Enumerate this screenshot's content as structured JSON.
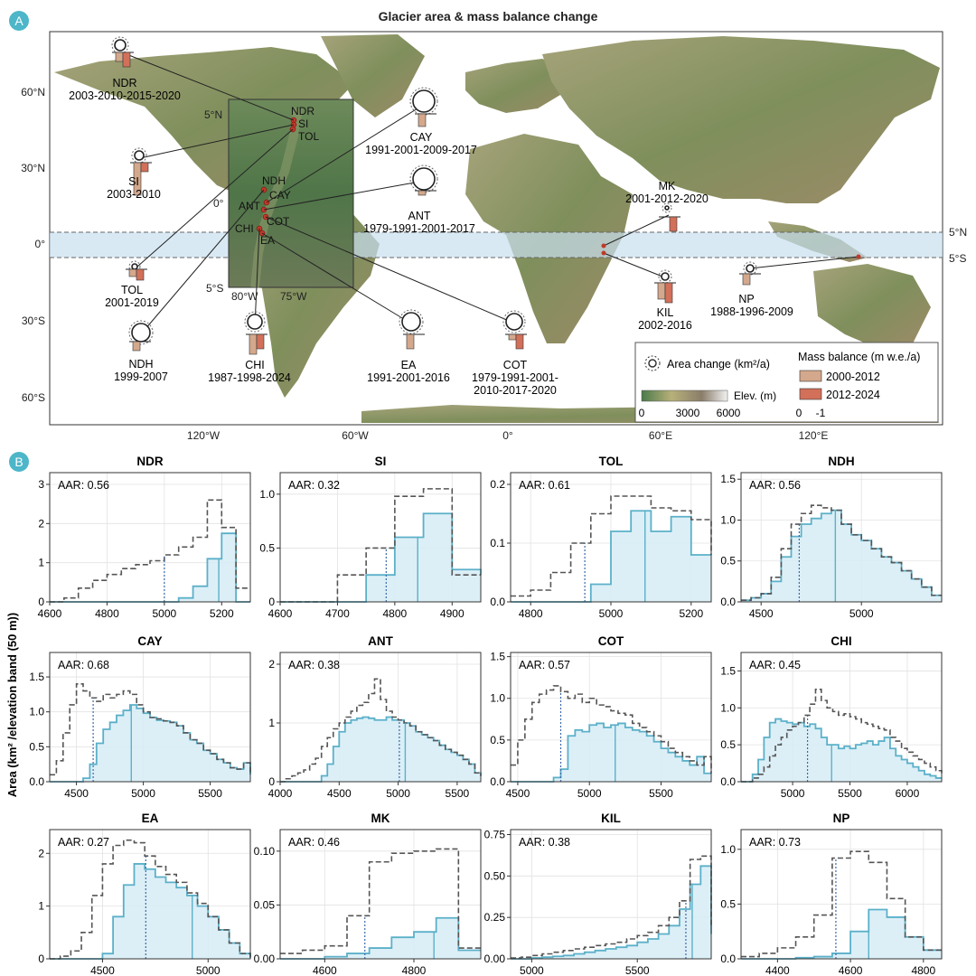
{
  "panel_a": {
    "label": "A",
    "title": "Glacier area & mass balance change",
    "lat_ticks": [
      "60°N",
      "30°N",
      "0°",
      "30°S",
      "60°S"
    ],
    "lon_ticks": [
      "120°W",
      "60°W",
      "0°",
      "60°E",
      "120°E"
    ],
    "band_labels": [
      "5°N",
      "5°S"
    ],
    "inset": {
      "lat_ticks": [
        "5°N",
        "0°",
        "5°S"
      ],
      "lon_ticks": [
        "80°W",
        "75°W"
      ],
      "site_labels": [
        "NDR",
        "SI",
        "TOL",
        "NDH",
        "CAY",
        "ANT",
        "COT",
        "CHI",
        "EA"
      ]
    },
    "sites": [
      {
        "code": "NDR",
        "years": "2003-2010-2015-2020"
      },
      {
        "code": "SI",
        "years": "2003-2010"
      },
      {
        "code": "TOL",
        "years": "2001-2019"
      },
      {
        "code": "NDH",
        "years": "1999-2007"
      },
      {
        "code": "CHI",
        "years": "1987-1998-2024"
      },
      {
        "code": "CAY",
        "years": "1991-2001-2009-2017"
      },
      {
        "code": "ANT",
        "years": "1979-1991-2001-2017"
      },
      {
        "code": "EA",
        "years": "1991-2001-2016"
      },
      {
        "code": "COT",
        "years": "1979-1991-2001-2010-2017-2020"
      },
      {
        "code": "MK",
        "years": "2001-2012-2020"
      },
      {
        "code": "KIL",
        "years": "2002-2016"
      },
      {
        "code": "NP",
        "years": "1988-1996-2009"
      }
    ],
    "legend": {
      "area_change": "Area change (km²/a)",
      "mass_balance": "Mass balance (m w.e./a)",
      "period1": "2000-2012",
      "period2": "2012-2024",
      "elev_label": "Elev. (m)",
      "elev_ticks": [
        "0",
        "3000",
        "6000"
      ],
      "mb_ticks": [
        "0",
        "-1"
      ]
    },
    "colors": {
      "period1": "#d4a88c",
      "period2": "#d2705a",
      "ocean": "#ffffff",
      "band": "#c9dff0"
    }
  },
  "panel_b": {
    "label": "B",
    "ylabel": "Area (km² /elevation band (50 m))",
    "colors": {
      "past": "#555555",
      "current": "#5bb0c9",
      "fill": "#d6ecf6"
    }
  },
  "chart_data": [
    {
      "type": "line",
      "title": "NDR",
      "aar": "AAR: 0.56",
      "xlim": [
        4600,
        5300
      ],
      "ylim": [
        0,
        3.3
      ],
      "xticks": [
        4600,
        4800,
        5000,
        5200
      ],
      "yticks": [
        0,
        1,
        2,
        3
      ],
      "ytick_labels": [
        "0",
        "1",
        "2",
        "3"
      ],
      "x": [
        4600,
        4650,
        4700,
        4750,
        4800,
        4850,
        4900,
        4950,
        5000,
        5050,
        5100,
        5150,
        5200,
        5250,
        5300
      ],
      "past": [
        0,
        0.1,
        0.35,
        0.55,
        0.7,
        0.85,
        0.95,
        1.05,
        1.2,
        1.4,
        1.65,
        2.6,
        1.9,
        0.35,
        0.35
      ],
      "current": [
        0,
        0,
        0,
        0,
        0,
        0,
        0,
        0,
        0,
        0.1,
        0.4,
        1.1,
        1.75,
        0,
        0
      ],
      "ela_past": 5000,
      "ela_current": 5190
    },
    {
      "type": "line",
      "title": "SI",
      "aar": "AAR: 0.32",
      "xlim": [
        4600,
        4950
      ],
      "ylim": [
        0,
        1.2
      ],
      "xticks": [
        4600,
        4700,
        4800,
        4900
      ],
      "yticks": [
        0,
        0.5,
        1.0
      ],
      "ytick_labels": [
        "0",
        "0.5",
        "1.0"
      ],
      "x": [
        4600,
        4650,
        4700,
        4750,
        4800,
        4850,
        4900,
        4950
      ],
      "past": [
        0,
        0,
        0.25,
        0.5,
        0.98,
        1.05,
        0.25,
        0.25
      ],
      "current": [
        0,
        0,
        0,
        0.25,
        0.6,
        0.82,
        0.3,
        0.25
      ],
      "ela_past": 4785,
      "ela_current": 4840
    },
    {
      "type": "line",
      "title": "TOL",
      "aar": "AAR: 0.61",
      "xlim": [
        4750,
        5250
      ],
      "ylim": [
        0,
        0.22
      ],
      "xticks": [
        4800,
        5000,
        5200
      ],
      "yticks": [
        0,
        0.1,
        0.2
      ],
      "ytick_labels": [
        "0.0",
        "0.1",
        "0.2"
      ],
      "x": [
        4750,
        4800,
        4850,
        4900,
        4950,
        5000,
        5050,
        5100,
        5150,
        5200,
        5250
      ],
      "past": [
        0.01,
        0.02,
        0.05,
        0.1,
        0.15,
        0.18,
        0.18,
        0.16,
        0.155,
        0.14,
        0.08
      ],
      "current": [
        0,
        0,
        0,
        0,
        0.03,
        0.12,
        0.155,
        0.12,
        0.145,
        0.08,
        0.08
      ],
      "ela_past": 4935,
      "ela_current": 5085
    },
    {
      "type": "line",
      "title": "NDH",
      "aar": "AAR: 0.56",
      "xlim": [
        4400,
        5400
      ],
      "ylim": [
        0,
        1.58
      ],
      "xticks": [
        4500,
        5000
      ],
      "yticks": [
        0,
        0.5,
        1.0,
        1.5
      ],
      "ytick_labels": [
        "0.0",
        "0.5",
        "1.0",
        "1.5"
      ],
      "x": [
        4400,
        4450,
        4500,
        4550,
        4600,
        4650,
        4700,
        4750,
        4800,
        4850,
        4900,
        4950,
        5000,
        5050,
        5100,
        5150,
        5200,
        5250,
        5300,
        5350,
        5400
      ],
      "past": [
        0.02,
        0.05,
        0.1,
        0.3,
        0.65,
        0.95,
        1.08,
        1.18,
        1.15,
        1.12,
        0.95,
        0.82,
        0.75,
        0.65,
        0.55,
        0.48,
        0.38,
        0.28,
        0.18,
        0.08,
        0.08
      ],
      "current": [
        0.02,
        0.05,
        0.1,
        0.25,
        0.55,
        0.8,
        0.95,
        1.02,
        1.08,
        1.12,
        0.95,
        0.82,
        0.75,
        0.65,
        0.55,
        0.48,
        0.38,
        0.28,
        0.18,
        0.08,
        0.08
      ],
      "ela_past": 4690,
      "ela_current": 4870
    },
    {
      "type": "line",
      "title": "CAY",
      "aar": "AAR: 0.68",
      "xlim": [
        4300,
        5800
      ],
      "ylim": [
        0,
        1.85
      ],
      "xticks": [
        4500,
        5000,
        5500
      ],
      "yticks": [
        0,
        0.5,
        1.0,
        1.5
      ],
      "ytick_labels": [
        "0.0",
        "0.5",
        "1.0",
        "1.5"
      ],
      "x": [
        4300,
        4350,
        4400,
        4450,
        4500,
        4550,
        4600,
        4650,
        4700,
        4750,
        4800,
        4850,
        4900,
        4950,
        5000,
        5050,
        5100,
        5150,
        5200,
        5250,
        5300,
        5350,
        5400,
        5450,
        5500,
        5550,
        5600,
        5650,
        5700,
        5750,
        5800
      ],
      "past": [
        0.1,
        0.3,
        0.7,
        1.1,
        1.4,
        1.3,
        1.2,
        1.15,
        1.25,
        1.2,
        1.25,
        1.3,
        1.25,
        1.1,
        1.0,
        0.92,
        0.9,
        0.87,
        0.85,
        0.8,
        0.7,
        0.6,
        0.55,
        0.45,
        0.4,
        0.32,
        0.27,
        0.2,
        0.18,
        0.27,
        0.1
      ],
      "current": [
        0,
        0,
        0,
        0,
        0,
        0.05,
        0.25,
        0.55,
        0.75,
        0.85,
        0.95,
        1.02,
        1.1,
        1.05,
        0.98,
        0.92,
        0.88,
        0.87,
        0.85,
        0.8,
        0.7,
        0.6,
        0.55,
        0.45,
        0.4,
        0.32,
        0.27,
        0.2,
        0.18,
        0.27,
        0.1
      ],
      "ela_past": 4625,
      "ela_current": 4910
    },
    {
      "type": "line",
      "title": "ANT",
      "aar": "AAR: 0.38",
      "xlim": [
        4000,
        5700
      ],
      "ylim": [
        0,
        2.2
      ],
      "xticks": [
        4000,
        4500,
        5000,
        5500
      ],
      "yticks": [
        0,
        1,
        2
      ],
      "ytick_labels": [
        "0",
        "1",
        "2"
      ],
      "x": [
        4000,
        4050,
        4100,
        4150,
        4200,
        4250,
        4300,
        4350,
        4400,
        4450,
        4500,
        4550,
        4600,
        4650,
        4700,
        4750,
        4800,
        4850,
        4900,
        4950,
        5000,
        5050,
        5100,
        5150,
        5200,
        5250,
        5300,
        5350,
        5400,
        5450,
        5500,
        5550,
        5600,
        5650,
        5700
      ],
      "past": [
        0,
        0.05,
        0.1,
        0.15,
        0.2,
        0.3,
        0.4,
        0.6,
        0.75,
        0.9,
        1.0,
        1.1,
        1.2,
        1.3,
        1.35,
        1.5,
        1.75,
        1.4,
        1.2,
        1.1,
        1.05,
        1.0,
        0.95,
        0.85,
        0.8,
        0.75,
        0.7,
        0.62,
        0.55,
        0.5,
        0.45,
        0.38,
        0.3,
        0.15,
        0.1
      ],
      "current": [
        0,
        0,
        0,
        0,
        0,
        0,
        0,
        0.1,
        0.3,
        0.6,
        0.85,
        1.0,
        1.05,
        1.08,
        1.1,
        1.08,
        1.05,
        1.05,
        1.1,
        1.05,
        1.05,
        1.0,
        0.95,
        0.85,
        0.8,
        0.75,
        0.7,
        0.62,
        0.55,
        0.5,
        0.45,
        0.38,
        0.3,
        0.15,
        0.1
      ],
      "ela_past": 5010,
      "ela_current": 5060
    },
    {
      "type": "line",
      "title": "COT",
      "aar": "AAR: 0.57",
      "xlim": [
        4450,
        5850
      ],
      "ylim": [
        0,
        1.55
      ],
      "xticks": [
        4500,
        5000,
        5500
      ],
      "yticks": [
        0,
        0.5,
        1.0,
        1.5
      ],
      "ytick_labels": [
        "0.0",
        "0.5",
        "1.0",
        "1.5"
      ],
      "x": [
        4450,
        4500,
        4550,
        4600,
        4650,
        4700,
        4750,
        4800,
        4850,
        4900,
        4950,
        5000,
        5050,
        5100,
        5150,
        5200,
        5250,
        5300,
        5350,
        5400,
        5450,
        5500,
        5550,
        5600,
        5650,
        5700,
        5750,
        5800,
        5850
      ],
      "past": [
        0.2,
        0.5,
        0.75,
        0.95,
        1.05,
        1.1,
        1.15,
        1.08,
        1.0,
        1.05,
        0.95,
        1.0,
        0.92,
        0.9,
        0.85,
        0.82,
        0.8,
        0.7,
        0.65,
        0.6,
        0.55,
        0.48,
        0.4,
        0.35,
        0.3,
        0.25,
        0.2,
        0.3,
        0.1
      ],
      "current": [
        0,
        0,
        0,
        0,
        0,
        0,
        0.05,
        0.15,
        0.55,
        0.62,
        0.6,
        0.68,
        0.7,
        0.65,
        0.68,
        0.7,
        0.65,
        0.62,
        0.6,
        0.55,
        0.48,
        0.4,
        0.35,
        0.3,
        0.25,
        0.2,
        0.3,
        0.1,
        0.1
      ],
      "ela_past": 4800,
      "ela_current": 5180
    },
    {
      "type": "line",
      "title": "CHI",
      "aar": "AAR: 0.45",
      "xlim": [
        4550,
        6300
      ],
      "ylim": [
        0,
        1.75
      ],
      "xticks": [
        5000,
        5500,
        6000
      ],
      "yticks": [
        0,
        0.5,
        1.0,
        1.5
      ],
      "ytick_labels": [
        "0.0",
        "0.5",
        "1.0",
        "1.5"
      ],
      "x": [
        4550,
        4600,
        4650,
        4700,
        4750,
        4800,
        4850,
        4900,
        4950,
        5000,
        5050,
        5100,
        5150,
        5200,
        5250,
        5300,
        5350,
        5400,
        5450,
        5500,
        5550,
        5600,
        5650,
        5700,
        5750,
        5800,
        5850,
        5900,
        5950,
        6000,
        6050,
        6100,
        6150,
        6200,
        6250,
        6300
      ],
      "past": [
        0,
        0,
        0.05,
        0.1,
        0.2,
        0.35,
        0.5,
        0.6,
        0.7,
        0.75,
        0.8,
        0.9,
        1.05,
        1.25,
        1.1,
        1.0,
        0.95,
        0.9,
        0.92,
        0.88,
        0.85,
        0.8,
        0.78,
        0.75,
        0.72,
        0.7,
        0.6,
        0.55,
        0.45,
        0.4,
        0.35,
        0.3,
        0.25,
        0.2,
        0.15,
        0.1
      ],
      "current": [
        0,
        0,
        0.1,
        0.3,
        0.6,
        0.8,
        0.85,
        0.82,
        0.8,
        0.78,
        0.8,
        0.75,
        0.78,
        0.72,
        0.6,
        0.5,
        0.5,
        0.45,
        0.48,
        0.45,
        0.5,
        0.52,
        0.55,
        0.5,
        0.55,
        0.6,
        0.45,
        0.35,
        0.3,
        0.25,
        0.2,
        0.15,
        0.1,
        0.08,
        0.05,
        0.05
      ],
      "ela_past": 5130,
      "ela_current": 5340
    },
    {
      "type": "line",
      "title": "EA",
      "aar": "AAR: 0.27",
      "xlim": [
        4250,
        5200
      ],
      "ylim": [
        0,
        2.45
      ],
      "xticks": [
        4500,
        5000
      ],
      "yticks": [
        0,
        1,
        2
      ],
      "ytick_labels": [
        "0",
        "1",
        "2"
      ],
      "x": [
        4250,
        4300,
        4350,
        4400,
        4450,
        4500,
        4550,
        4600,
        4650,
        4700,
        4750,
        4800,
        4850,
        4900,
        4950,
        5000,
        5050,
        5100,
        5150,
        5200
      ],
      "past": [
        0,
        0.05,
        0.15,
        0.5,
        1.2,
        1.8,
        2.15,
        2.25,
        2.2,
        1.95,
        1.75,
        1.6,
        1.45,
        1.25,
        1.05,
        0.8,
        0.55,
        0.3,
        0.1,
        0.02
      ],
      "current": [
        0,
        0,
        0,
        0,
        0,
        0.1,
        0.8,
        1.4,
        1.8,
        1.7,
        1.55,
        1.45,
        1.35,
        1.2,
        1.0,
        0.8,
        0.55,
        0.3,
        0.1,
        0.02
      ],
      "ela_past": 4705,
      "ela_current": 4925
    },
    {
      "type": "line",
      "title": "MK",
      "aar": "AAR: 0.46",
      "xlim": [
        4500,
        4950
      ],
      "ylim": [
        0,
        0.12
      ],
      "xticks": [
        4600,
        4800
      ],
      "yticks": [
        0,
        0.05,
        0.1
      ],
      "ytick_labels": [
        "0.00",
        "0.05",
        "0.10"
      ],
      "x": [
        4500,
        4550,
        4600,
        4650,
        4700,
        4750,
        4800,
        4850,
        4900,
        4950
      ],
      "past": [
        0.005,
        0.008,
        0.012,
        0.04,
        0.09,
        0.098,
        0.1,
        0.102,
        0.01,
        0.01
      ],
      "current": [
        0,
        0,
        0.002,
        0.005,
        0.01,
        0.02,
        0.025,
        0.038,
        0.008,
        0.008
      ],
      "ela_past": 4690,
      "ela_current": 4845
    },
    {
      "type": "line",
      "title": "KIL",
      "aar": "AAR: 0.38",
      "xlim": [
        4900,
        5850
      ],
      "ylim": [
        0,
        0.78
      ],
      "xticks": [
        5000,
        5500
      ],
      "yticks": [
        0,
        0.25,
        0.5,
        0.75
      ],
      "ytick_labels": [
        "0.00",
        "0.25",
        "0.50",
        "0.75"
      ],
      "x": [
        4900,
        4950,
        5000,
        5050,
        5100,
        5150,
        5200,
        5250,
        5300,
        5350,
        5400,
        5450,
        5500,
        5550,
        5600,
        5650,
        5700,
        5750,
        5800,
        5850
      ],
      "past": [
        0.005,
        0.01,
        0.02,
        0.03,
        0.04,
        0.05,
        0.06,
        0.07,
        0.08,
        0.09,
        0.1,
        0.12,
        0.14,
        0.16,
        0.2,
        0.25,
        0.35,
        0.6,
        0.62,
        0.2
      ],
      "current": [
        0,
        0,
        0.005,
        0.01,
        0.015,
        0.02,
        0.03,
        0.04,
        0.05,
        0.06,
        0.07,
        0.08,
        0.1,
        0.12,
        0.15,
        0.2,
        0.3,
        0.45,
        0.56,
        0.15
      ],
      "ela_past": 5730,
      "ela_current": 5760
    },
    {
      "type": "line",
      "title": "NP",
      "aar": "AAR: 0.73",
      "xlim": [
        4300,
        4850
      ],
      "ylim": [
        0,
        1.18
      ],
      "xticks": [
        4400,
        4600,
        4800
      ],
      "yticks": [
        0,
        0.5,
        1.0
      ],
      "ytick_labels": [
        "0.0",
        "0.5",
        "1.0"
      ],
      "x": [
        4300,
        4350,
        4400,
        4450,
        4500,
        4550,
        4600,
        4650,
        4700,
        4750,
        4800,
        4850
      ],
      "past": [
        0.02,
        0.05,
        0.1,
        0.2,
        0.4,
        0.92,
        0.98,
        0.88,
        0.55,
        0.2,
        0.08,
        0.08
      ],
      "current": [
        0,
        0,
        0,
        0.01,
        0.02,
        0.05,
        0.25,
        0.45,
        0.38,
        0.2,
        0.08,
        0.08
      ],
      "ela_past": 4560,
      "ela_current": 4650
    }
  ]
}
